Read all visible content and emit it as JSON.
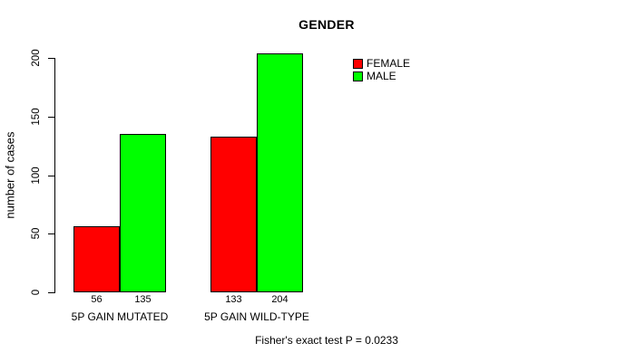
{
  "page": {
    "background": "#ffffff",
    "text_color": "#000000",
    "axis_color": "#000000"
  },
  "chart_data": {
    "type": "bar",
    "title": "GENDER",
    "ylabel": "number of cases",
    "xlabel": "",
    "categories": [
      "5P GAIN MUTATED",
      "5P GAIN WILD-TYPE"
    ],
    "series": [
      {
        "name": "FEMALE",
        "color": "#ff0000",
        "values": [
          56,
          133
        ]
      },
      {
        "name": "MALE",
        "color": "#00ff00",
        "values": [
          135,
          204
        ]
      }
    ],
    "yticks": [
      0,
      50,
      100,
      150,
      200
    ],
    "ylim": [
      0,
      200
    ],
    "grid": false,
    "bar_value_labels": [
      [
        56,
        135
      ],
      [
        133,
        204
      ]
    ],
    "legend_position": "top-right",
    "annotation": "Fisher's exact test P = 0.0233"
  }
}
